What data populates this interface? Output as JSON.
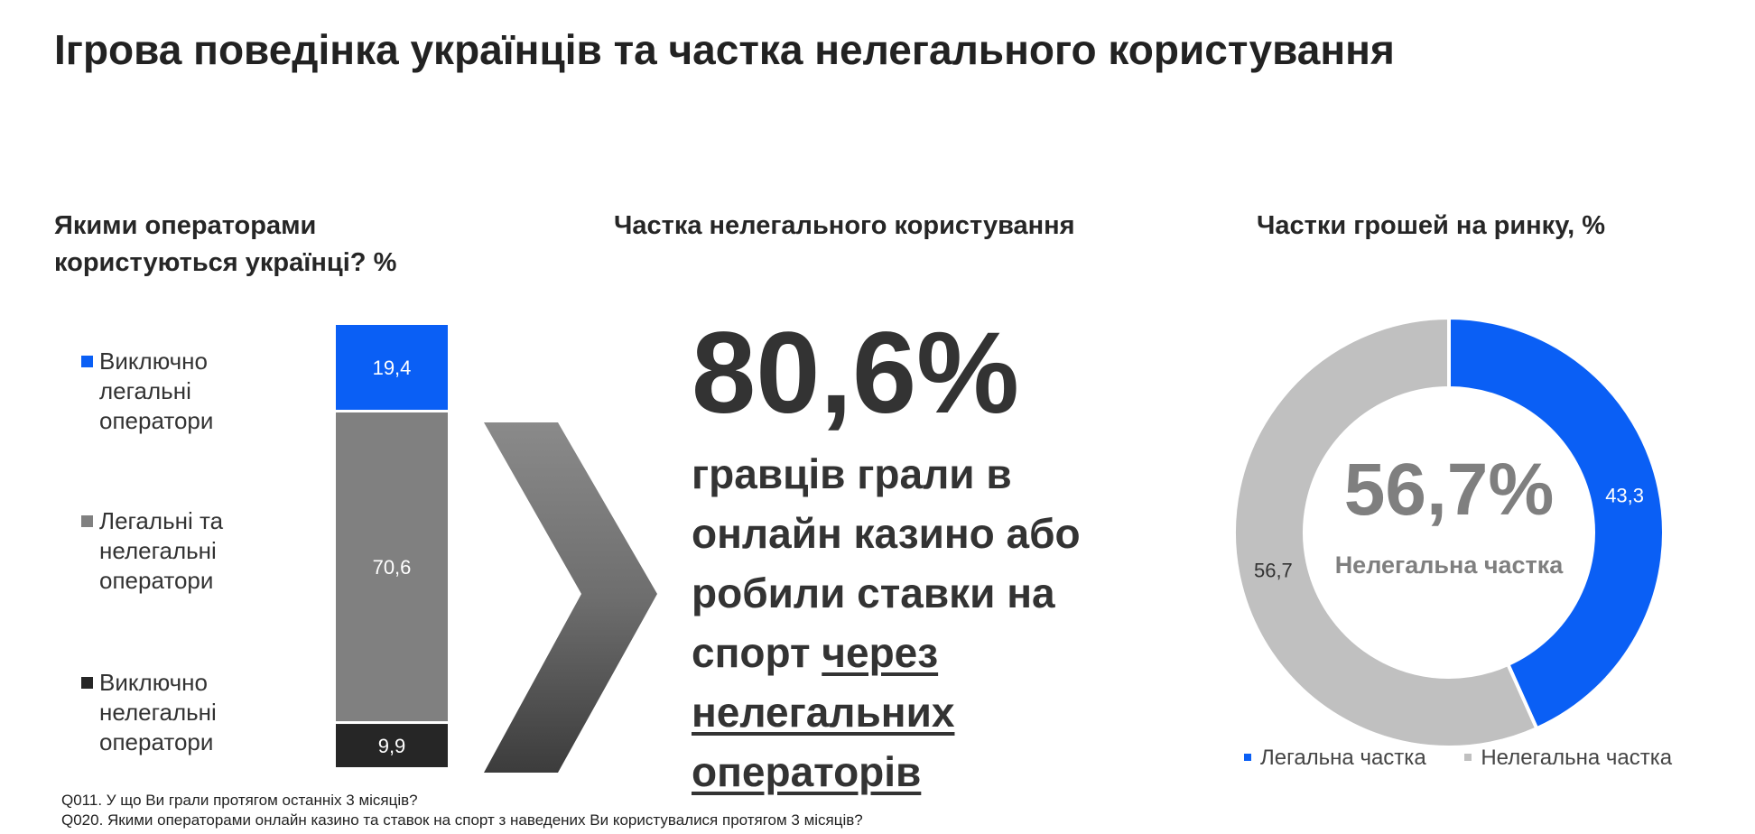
{
  "page_title": "Ігрова поведінка українців та частка нелегального користування",
  "sections": {
    "left_title": "Якими операторами користуються українці? %",
    "mid_title": "Частка нелегального користування",
    "right_title": "Частки грошей на ринку, %"
  },
  "colors": {
    "legal": "#0a5ff5",
    "mixed": "#808080",
    "illegal": "#262626",
    "donut_illegal": "#c0c0c0",
    "text_dark": "#333333"
  },
  "chart_data": [
    {
      "type": "bar",
      "stacked": true,
      "title": "Якими операторами користуються українці? %",
      "categories": [
        ""
      ],
      "series": [
        {
          "name": "Виключно легальні оператори",
          "values": [
            19.4
          ],
          "label": "19,4",
          "color": "#0a5ff5"
        },
        {
          "name": "Легальні та нелегальні оператори",
          "values": [
            70.6
          ],
          "label": "70,6",
          "color": "#808080"
        },
        {
          "name": "Виключно нелегальні оператори",
          "values": [
            9.9
          ],
          "label": "9,9",
          "color": "#262626"
        }
      ],
      "legend": "left"
    },
    {
      "type": "pie",
      "donut": true,
      "title": "Частки грошей на ринку, %",
      "slices": [
        {
          "name": "Легальна частка",
          "value": 43.3,
          "label": "43,3",
          "color": "#0a5ff5"
        },
        {
          "name": "Нелегальна частка",
          "value": 56.7,
          "label": "56,7",
          "color": "#c0c0c0"
        }
      ],
      "center_value": "56,7%",
      "center_label": "Нелегальна частка",
      "legend": "bottom"
    }
  ],
  "highlight": {
    "value": "80,6%",
    "text_plain": "гравців грали в онлайн казино або робили ставки на спорт ",
    "text_underlined": "через нелегальних операторів"
  },
  "footnotes": [
    "Q011. У що Ви грали протягом останніх 3 місяців?",
    "Q020. Якими операторами онлайн казино та ставок на спорт з наведених Ви користувалися протягом 3 місяців?"
  ]
}
